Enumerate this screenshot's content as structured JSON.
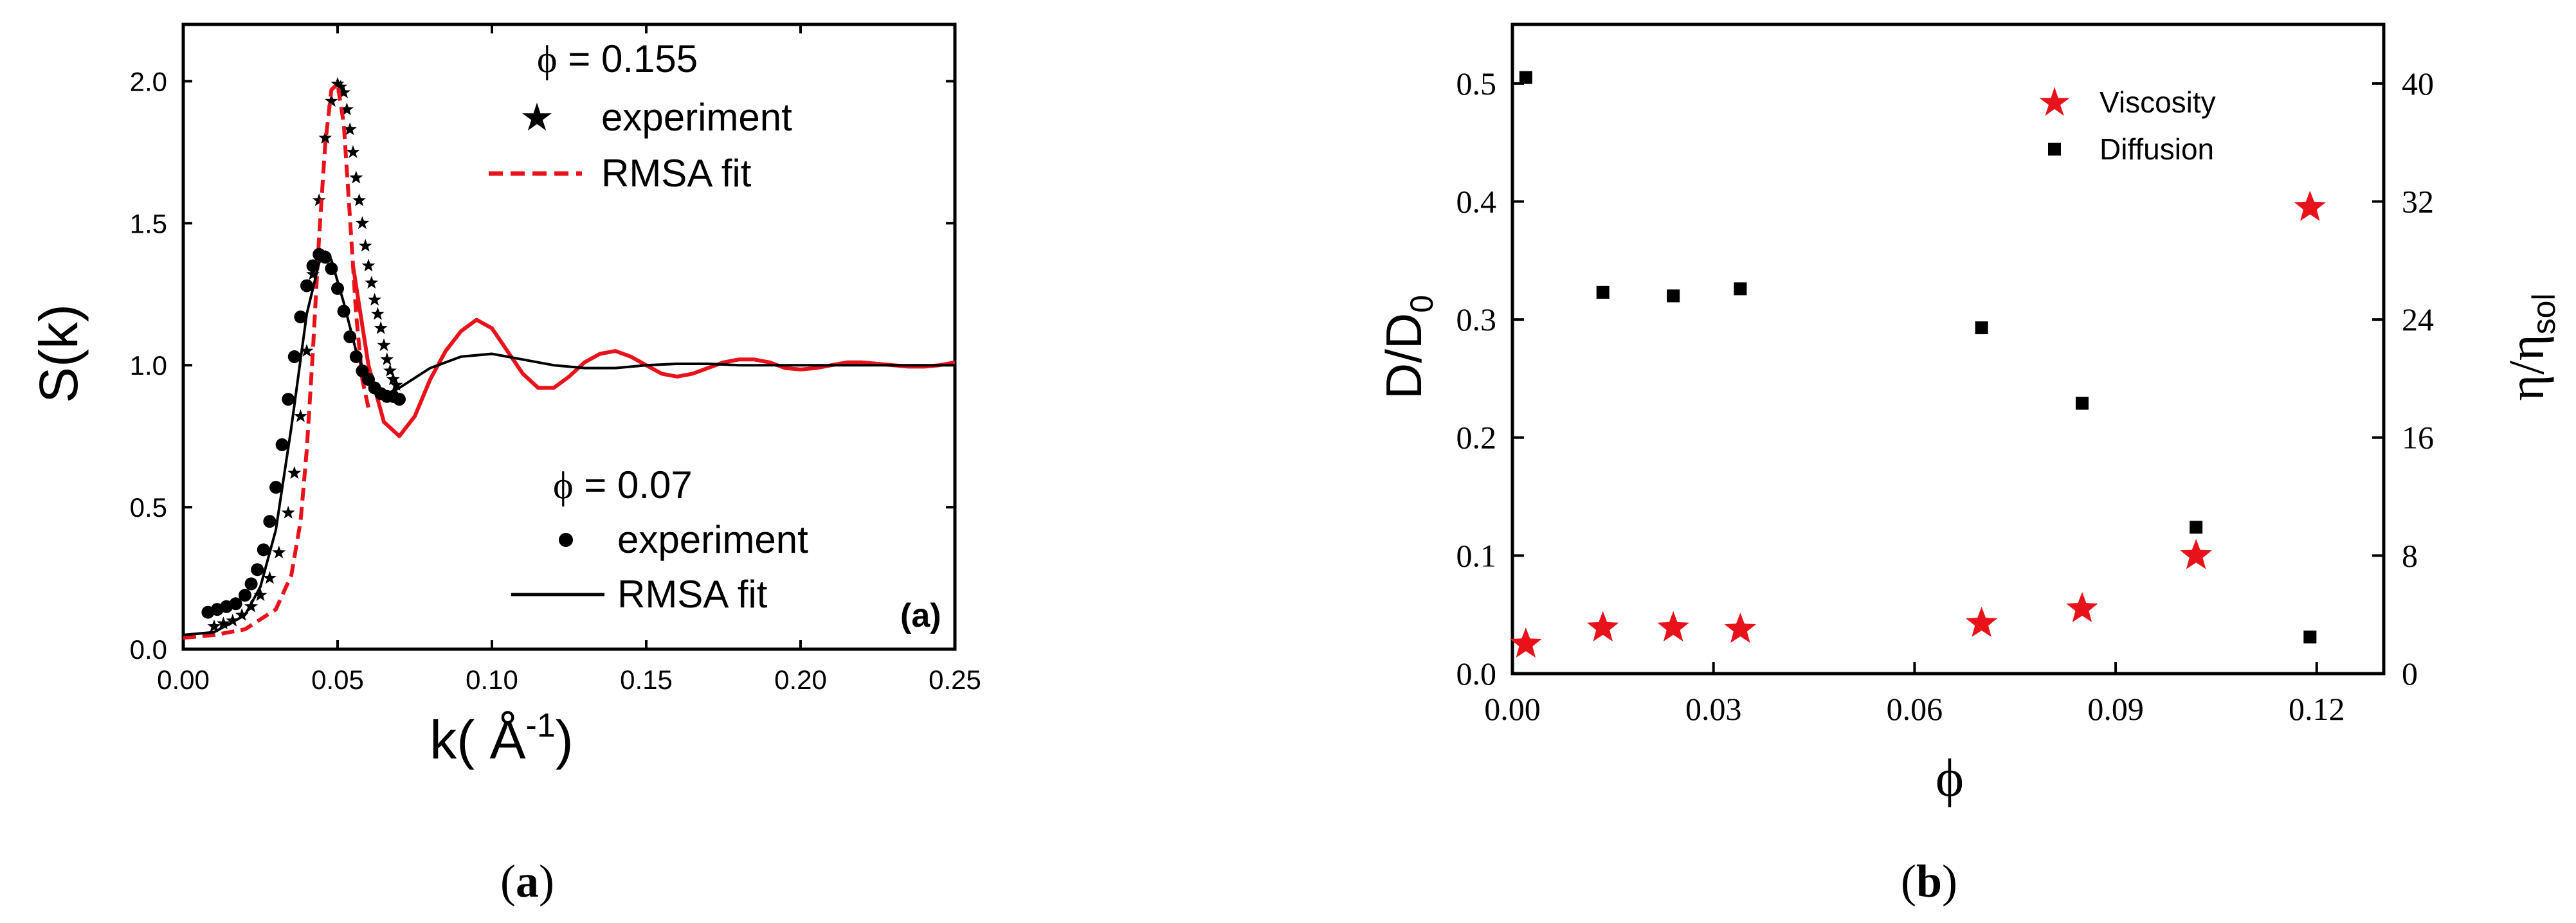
{
  "figure": {
    "caption_a": "(a)",
    "caption_b": "(b)"
  },
  "chart_data": [
    {
      "type": "line",
      "panel": "(a)",
      "xlabel_main": "k( ",
      "xlabel_unit": "Å",
      "xlabel_sup": "-1",
      "xlabel_close": ")",
      "ylabel": "S(k)",
      "xlim": [
        0.0,
        0.25
      ],
      "ylim": [
        0.0,
        2.2
      ],
      "xticks": [
        0.0,
        0.05,
        0.1,
        0.15,
        0.2,
        0.25
      ],
      "xtick_labels": [
        "0.00",
        "0.05",
        "0.10",
        "0.15",
        "0.20",
        "0.25"
      ],
      "yticks": [
        0.0,
        0.5,
        1.0,
        1.5,
        2.0
      ],
      "ytick_labels": [
        "0.0",
        "0.5",
        "1.0",
        "1.5",
        "2.0"
      ],
      "legend_top": {
        "phi_symbol": "ϕ",
        "phi_value": " = 0.155",
        "entries": [
          {
            "marker": "star",
            "label": "experiment"
          },
          {
            "marker": "dash",
            "label": "RMSA  fit"
          }
        ]
      },
      "legend_bottom": {
        "phi_symbol": "ϕ",
        "phi_value": " = 0.07",
        "entries": [
          {
            "marker": "circle",
            "label": "experiment"
          },
          {
            "marker": "line",
            "label": "RMSA fit"
          }
        ]
      },
      "panel_label": "(a)",
      "series": [
        {
          "name": "experiment (ϕ = 0.155)",
          "marker": "star",
          "color": "#000000",
          "x": [
            0.01,
            0.013,
            0.016,
            0.019,
            0.022,
            0.025,
            0.028,
            0.031,
            0.034,
            0.036,
            0.038,
            0.04,
            0.042,
            0.044,
            0.046,
            0.048,
            0.05,
            0.051,
            0.052,
            0.053,
            0.054,
            0.055,
            0.056,
            0.057,
            0.058,
            0.059,
            0.06,
            0.061,
            0.062,
            0.063,
            0.064,
            0.065,
            0.066,
            0.067,
            0.068,
            0.069
          ],
          "y": [
            0.08,
            0.09,
            0.1,
            0.12,
            0.15,
            0.19,
            0.25,
            0.34,
            0.48,
            0.62,
            0.82,
            1.05,
            1.32,
            1.58,
            1.8,
            1.93,
            1.99,
            1.98,
            1.96,
            1.9,
            1.83,
            1.75,
            1.66,
            1.58,
            1.5,
            1.42,
            1.35,
            1.29,
            1.23,
            1.18,
            1.13,
            1.07,
            1.02,
            0.98,
            0.95,
            0.93
          ]
        },
        {
          "name": "RMSA fit (ϕ = 0.155)",
          "style": "dashed",
          "color": "#e8121b",
          "x": [
            0.0,
            0.01,
            0.02,
            0.03,
            0.035,
            0.038,
            0.04,
            0.042,
            0.044,
            0.046,
            0.048,
            0.05,
            0.052,
            0.054,
            0.056,
            0.058,
            0.06
          ],
          "y": [
            0.04,
            0.05,
            0.07,
            0.14,
            0.26,
            0.45,
            0.7,
            1.05,
            1.45,
            1.78,
            1.97,
            1.99,
            1.85,
            1.52,
            1.18,
            0.95,
            0.85
          ]
        },
        {
          "name": "RMSA fit solid red (ϕ = 0.155)",
          "style": "solid",
          "color": "#e8121b",
          "x": [
            0.055,
            0.06,
            0.065,
            0.07,
            0.075,
            0.08,
            0.085,
            0.09,
            0.095,
            0.1,
            0.105,
            0.11,
            0.115,
            0.12,
            0.125,
            0.13,
            0.135,
            0.14,
            0.145,
            0.15,
            0.155,
            0.16,
            0.165,
            0.17,
            0.175,
            0.18,
            0.185,
            0.19,
            0.195,
            0.2,
            0.205,
            0.21,
            0.215,
            0.22,
            0.225,
            0.23,
            0.235,
            0.24,
            0.245,
            0.25
          ],
          "y": [
            1.35,
            1.0,
            0.8,
            0.75,
            0.82,
            0.95,
            1.05,
            1.12,
            1.16,
            1.13,
            1.05,
            0.97,
            0.92,
            0.92,
            0.96,
            1.01,
            1.04,
            1.05,
            1.03,
            1.0,
            0.97,
            0.96,
            0.97,
            0.99,
            1.01,
            1.02,
            1.02,
            1.01,
            0.99,
            0.985,
            0.99,
            1.0,
            1.01,
            1.01,
            1.005,
            1.0,
            0.995,
            0.995,
            1.0,
            1.01
          ]
        },
        {
          "name": "experiment (ϕ = 0.07)",
          "marker": "circle",
          "color": "#000000",
          "x": [
            0.008,
            0.011,
            0.014,
            0.017,
            0.02,
            0.022,
            0.024,
            0.026,
            0.028,
            0.03,
            0.032,
            0.034,
            0.036,
            0.038,
            0.04,
            0.042,
            0.044,
            0.046,
            0.048,
            0.05,
            0.052,
            0.054,
            0.056,
            0.058,
            0.06,
            0.062,
            0.064,
            0.066,
            0.068,
            0.07
          ],
          "y": [
            0.13,
            0.14,
            0.15,
            0.16,
            0.19,
            0.23,
            0.28,
            0.35,
            0.45,
            0.57,
            0.72,
            0.88,
            1.03,
            1.17,
            1.28,
            1.35,
            1.39,
            1.38,
            1.34,
            1.27,
            1.19,
            1.1,
            1.03,
            0.98,
            0.95,
            0.92,
            0.9,
            0.89,
            0.89,
            0.88
          ]
        },
        {
          "name": "RMSA fit (ϕ = 0.07)",
          "style": "solid",
          "color": "#000000",
          "x": [
            0.0,
            0.01,
            0.02,
            0.025,
            0.03,
            0.035,
            0.04,
            0.044,
            0.046,
            0.048,
            0.052,
            0.056,
            0.06,
            0.065,
            0.07,
            0.08,
            0.09,
            0.1,
            0.11,
            0.12,
            0.13,
            0.14,
            0.15,
            0.16,
            0.17,
            0.18,
            0.19,
            0.2,
            0.22,
            0.25
          ],
          "y": [
            0.05,
            0.06,
            0.12,
            0.22,
            0.42,
            0.78,
            1.18,
            1.36,
            1.4,
            1.37,
            1.22,
            1.05,
            0.94,
            0.89,
            0.92,
            0.99,
            1.03,
            1.04,
            1.02,
            1.0,
            0.99,
            0.99,
            1.0,
            1.005,
            1.005,
            1.0,
            1.0,
            1.0,
            1.0,
            1.0
          ]
        }
      ]
    },
    {
      "type": "scatter",
      "panel": "(b)",
      "xlabel": "ϕ",
      "ylabel_main": "D/D",
      "ylabel_sub": "0",
      "y2label_main": "η/η",
      "y2label_sub": "sol",
      "xlim": [
        0.0,
        0.13
      ],
      "ylim": [
        0.0,
        0.55
      ],
      "y2lim": [
        0,
        44
      ],
      "xticks": [
        0.0,
        0.03,
        0.06,
        0.09,
        0.12
      ],
      "xtick_labels": [
        "0.00",
        "0.03",
        "0.06",
        "0.09",
        "0.12"
      ],
      "yticks": [
        0.0,
        0.1,
        0.2,
        0.3,
        0.4,
        0.5
      ],
      "ytick_labels": [
        "0.0",
        "0.1",
        "0.2",
        "0.3",
        "0.4",
        "0.5"
      ],
      "y2ticks": [
        0,
        8,
        16,
        24,
        32,
        40
      ],
      "y2tick_labels": [
        "0",
        "8",
        "16",
        "24",
        "32",
        "40"
      ],
      "legend_position": "top-right",
      "series": [
        {
          "name": "Viscosity",
          "marker": "star",
          "color": "#e8121b",
          "axis": "right",
          "x": [
            0.002,
            0.0135,
            0.024,
            0.034,
            0.07,
            0.085,
            0.102,
            0.119
          ],
          "y": [
            2.0,
            3.1,
            3.1,
            3.0,
            3.4,
            4.4,
            8.0,
            31.6
          ]
        },
        {
          "name": "Diffusion",
          "marker": "square",
          "color": "#000000",
          "axis": "left",
          "x": [
            0.002,
            0.0135,
            0.024,
            0.034,
            0.07,
            0.085,
            0.102,
            0.119
          ],
          "y": [
            0.505,
            0.323,
            0.32,
            0.326,
            0.293,
            0.229,
            0.124,
            0.031
          ]
        }
      ]
    }
  ]
}
